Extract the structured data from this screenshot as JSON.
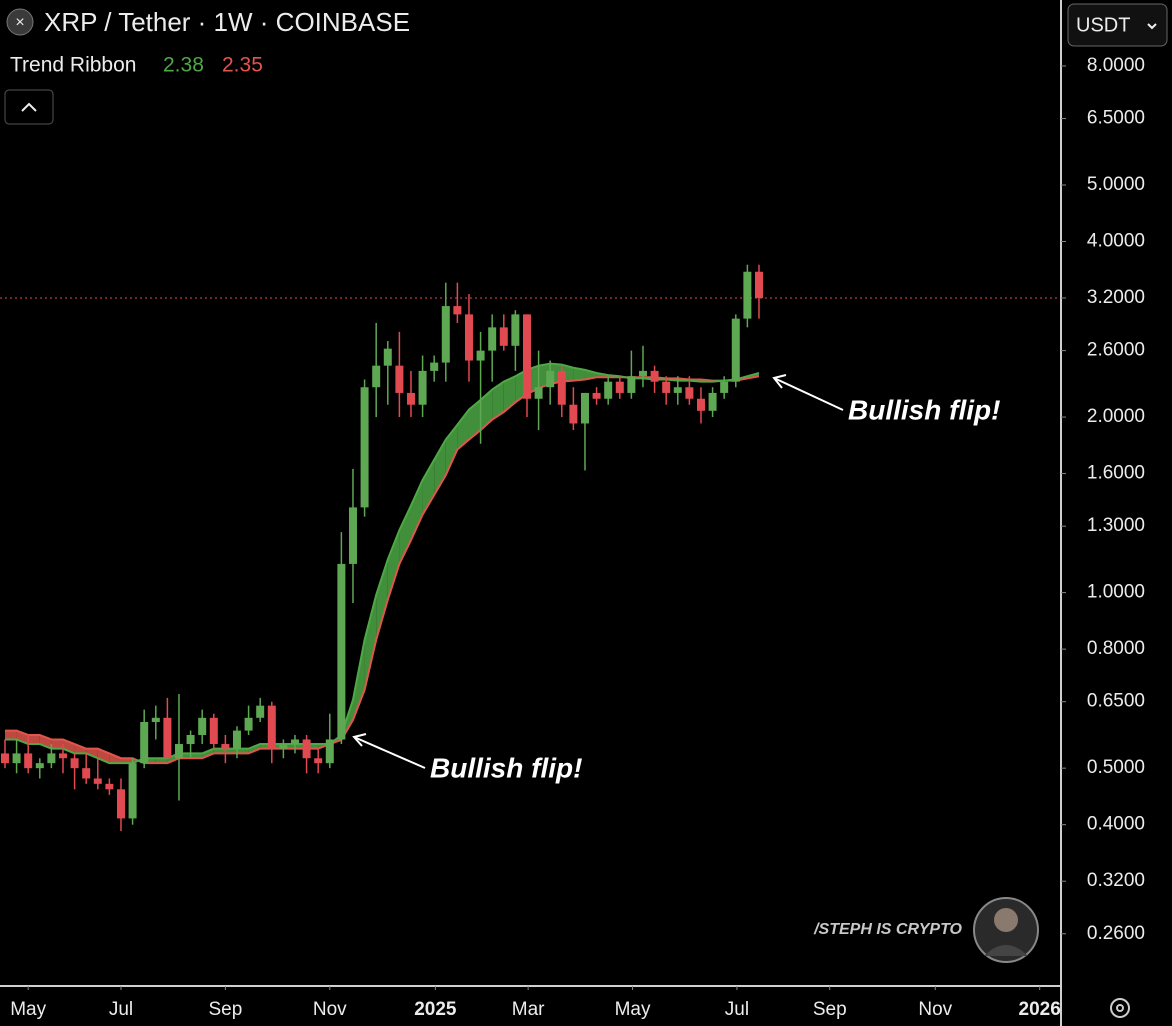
{
  "chart_data": {
    "type": "candlestick",
    "title": "XRP / Tether · 1W · COINBASE",
    "currency": "USDT",
    "watermark": "/STEPH IS CRYPTO",
    "log_scale": true,
    "up_color": "#5ea853",
    "down_color": "#e04a50",
    "x": [
      0,
      1,
      2,
      3,
      4,
      5,
      6,
      7,
      8,
      9,
      10,
      11,
      12,
      13,
      14,
      15,
      16,
      17,
      18,
      19,
      20,
      21,
      22,
      23,
      24,
      25,
      26,
      27,
      28,
      29,
      30,
      31,
      32,
      33,
      34,
      35,
      36,
      37,
      38,
      39,
      40,
      41,
      42,
      43,
      44,
      45,
      46,
      47,
      48,
      49,
      50,
      51,
      52,
      53,
      54,
      55,
      56,
      57,
      58,
      59,
      60,
      61,
      62,
      63,
      64,
      65
    ],
    "open": [
      0.53,
      0.51,
      0.53,
      0.5,
      0.51,
      0.53,
      0.52,
      0.5,
      0.48,
      0.47,
      0.46,
      0.41,
      0.51,
      0.6,
      0.61,
      0.52,
      0.55,
      0.57,
      0.61,
      0.55,
      0.54,
      0.58,
      0.61,
      0.64,
      0.54,
      0.55,
      0.56,
      0.52,
      0.51,
      0.56,
      1.12,
      1.4,
      2.25,
      2.45,
      2.45,
      2.2,
      2.1,
      2.4,
      2.48,
      3.1,
      3.0,
      2.5,
      2.6,
      2.85,
      2.65,
      3.0,
      2.15,
      2.25,
      2.4,
      2.1,
      1.95,
      2.2,
      2.15,
      2.3,
      2.2,
      2.35,
      2.4,
      2.3,
      2.2,
      2.25,
      2.15,
      2.05,
      2.2,
      2.3,
      2.95,
      3.55
    ],
    "high": [
      0.56,
      0.56,
      0.57,
      0.52,
      0.55,
      0.55,
      0.53,
      0.53,
      0.52,
      0.48,
      0.48,
      0.52,
      0.63,
      0.64,
      0.66,
      0.67,
      0.58,
      0.63,
      0.62,
      0.57,
      0.59,
      0.64,
      0.66,
      0.65,
      0.56,
      0.57,
      0.57,
      0.54,
      0.62,
      1.27,
      1.63,
      2.32,
      2.9,
      2.7,
      2.8,
      2.4,
      2.55,
      2.55,
      3.4,
      3.4,
      3.25,
      2.8,
      3.0,
      3.0,
      3.05,
      3.0,
      2.6,
      2.5,
      2.45,
      2.25,
      2.2,
      2.25,
      2.35,
      2.35,
      2.6,
      2.65,
      2.45,
      2.35,
      2.35,
      2.35,
      2.25,
      2.25,
      2.35,
      3.0,
      3.65,
      3.65
    ],
    "low": [
      0.5,
      0.49,
      0.49,
      0.48,
      0.5,
      0.49,
      0.46,
      0.47,
      0.46,
      0.45,
      0.39,
      0.4,
      0.5,
      0.56,
      0.52,
      0.44,
      0.52,
      0.55,
      0.54,
      0.51,
      0.52,
      0.57,
      0.6,
      0.51,
      0.52,
      0.53,
      0.49,
      0.49,
      0.5,
      0.55,
      0.96,
      1.35,
      2.0,
      2.1,
      2.0,
      2.0,
      2.0,
      2.3,
      2.3,
      2.9,
      2.3,
      1.8,
      2.3,
      2.6,
      2.4,
      2.0,
      1.9,
      2.1,
      2.0,
      1.9,
      1.62,
      2.1,
      2.1,
      2.15,
      2.15,
      2.25,
      2.2,
      2.1,
      2.1,
      2.1,
      1.95,
      2.0,
      2.15,
      2.25,
      2.85,
      2.95
    ],
    "close": [
      0.51,
      0.53,
      0.5,
      0.51,
      0.53,
      0.52,
      0.5,
      0.48,
      0.47,
      0.46,
      0.41,
      0.51,
      0.6,
      0.61,
      0.52,
      0.55,
      0.57,
      0.61,
      0.55,
      0.54,
      0.58,
      0.61,
      0.64,
      0.54,
      0.55,
      0.56,
      0.52,
      0.51,
      0.56,
      1.12,
      1.4,
      2.25,
      2.45,
      2.62,
      2.2,
      2.1,
      2.4,
      2.48,
      3.1,
      3.0,
      2.5,
      2.6,
      2.85,
      2.65,
      3.0,
      2.15,
      2.25,
      2.4,
      2.1,
      1.95,
      2.2,
      2.15,
      2.3,
      2.2,
      2.35,
      2.4,
      2.3,
      2.2,
      2.25,
      2.15,
      2.05,
      2.2,
      2.3,
      2.95,
      3.55,
      3.2
    ],
    "ribbon": {
      "name": "Trend Ribbon",
      "lines": [
        {
          "color": "#4ea845",
          "values": [
            0.56,
            0.56,
            0.55,
            0.55,
            0.54,
            0.54,
            0.53,
            0.53,
            0.52,
            0.51,
            0.51,
            0.51,
            0.52,
            0.52,
            0.52,
            0.53,
            0.53,
            0.53,
            0.54,
            0.54,
            0.54,
            0.54,
            0.55,
            0.55,
            0.55,
            0.55,
            0.55,
            0.55,
            0.55,
            0.57,
            0.655,
            0.83,
            0.991,
            1.14,
            1.28,
            1.41,
            1.56,
            1.69,
            1.83,
            1.94,
            2.06,
            2.14,
            2.23,
            2.3,
            2.35,
            2.41,
            2.45,
            2.47,
            2.46,
            2.43,
            2.41,
            2.38,
            2.36,
            2.35,
            2.33,
            2.33,
            2.32,
            2.32,
            2.31,
            2.31,
            2.3,
            2.3,
            2.31,
            2.32,
            2.35,
            2.38
          ]
        },
        {
          "color": "#e0564c",
          "values": [
            0.58,
            0.58,
            0.57,
            0.57,
            0.56,
            0.56,
            0.55,
            0.54,
            0.54,
            0.53,
            0.52,
            0.52,
            0.51,
            0.51,
            0.51,
            0.52,
            0.52,
            0.52,
            0.53,
            0.53,
            0.53,
            0.53,
            0.54,
            0.54,
            0.54,
            0.54,
            0.54,
            0.54,
            0.55,
            0.559,
            0.605,
            0.681,
            0.83,
            0.972,
            1.12,
            1.23,
            1.36,
            1.47,
            1.59,
            1.76,
            1.83,
            1.9,
            1.98,
            2.04,
            2.12,
            2.19,
            2.24,
            2.28,
            2.3,
            2.31,
            2.32,
            2.34,
            2.34,
            2.34,
            2.34,
            2.34,
            2.34,
            2.33,
            2.33,
            2.32,
            2.32,
            2.31,
            2.31,
            2.31,
            2.33,
            2.35
          ]
        }
      ]
    },
    "xlim": [
      -0.43,
      90.95
    ],
    "xticks": [
      {
        "value": 2,
        "label": "May"
      },
      {
        "value": 10,
        "label": "Jul"
      },
      {
        "value": 19,
        "label": "Sep"
      },
      {
        "value": 28,
        "label": "Nov"
      },
      {
        "value": 37.1,
        "label": "2025"
      },
      {
        "value": 45.1,
        "label": "Mar"
      },
      {
        "value": 54.1,
        "label": "May"
      },
      {
        "value": 63.1,
        "label": "Jul"
      },
      {
        "value": 71.1,
        "label": "Sep"
      },
      {
        "value": 80.2,
        "label": "Nov"
      },
      {
        "value": 89.2,
        "label": "2026"
      }
    ],
    "ylim": [
      0.2124,
      10.38
    ],
    "yticks": [
      {
        "value": 8,
        "label": "8.0000"
      },
      {
        "value": 6.5,
        "label": "6.5000"
      },
      {
        "value": 5,
        "label": "5.0000"
      },
      {
        "value": 4,
        "label": "4.0000"
      },
      {
        "value": 3.2,
        "label": "3.2000"
      },
      {
        "value": 2.6,
        "label": "2.6000"
      },
      {
        "value": 2,
        "label": "2.0000"
      },
      {
        "value": 1.6,
        "label": "1.6000"
      },
      {
        "value": 1.3,
        "label": "1.3000"
      },
      {
        "value": 1,
        "label": "1.0000"
      },
      {
        "value": 0.8,
        "label": "0.8000"
      },
      {
        "value": 0.65,
        "label": "0.6500"
      },
      {
        "value": 0.5,
        "label": "0.5000"
      },
      {
        "value": 0.4,
        "label": "0.4000"
      },
      {
        "value": 0.32,
        "label": "0.3200"
      },
      {
        "value": 0.26,
        "label": "0.2600"
      }
    ],
    "annotations": [
      {
        "text": "Bullish flip!"
      },
      {
        "text": "Bullish flip!"
      }
    ]
  }
}
